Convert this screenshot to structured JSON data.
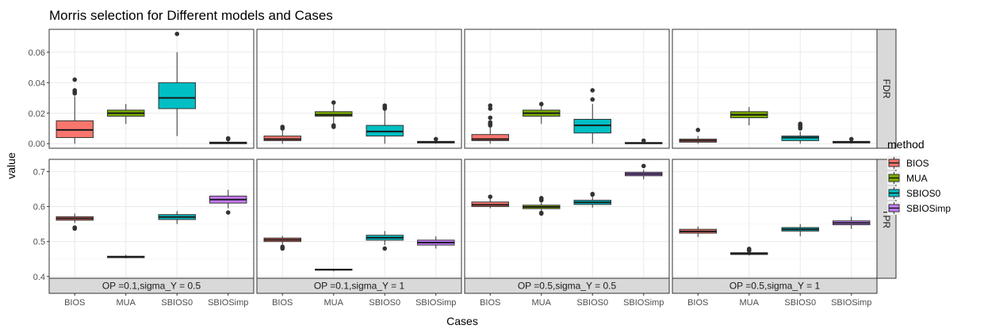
{
  "chart_data": {
    "type": "box",
    "title": "Morris selection for Different models and Cases",
    "xlabel": "Cases",
    "ylabel": "value",
    "legend": {
      "title": "method",
      "position": "right",
      "entries": [
        {
          "name": "BIOS",
          "color": "#F8766D"
        },
        {
          "name": "MUA",
          "color": "#7CAE00"
        },
        {
          "name": "SBIOS0",
          "color": "#00BFC4"
        },
        {
          "name": "SBIOSimp",
          "color": "#C77CFF"
        }
      ]
    },
    "categories": [
      "BIOS",
      "MUA",
      "SBIOS0",
      "SBIOSimp"
    ],
    "columns": [
      "OP =0.1,sigma_Y = 0.5",
      "OP =0.1,sigma_Y = 1",
      "OP =0.5,sigma_Y = 0.5",
      "OP =0.5,sigma_Y = 1"
    ],
    "rows": [
      {
        "label": "FDR",
        "ylim": [
          -0.003,
          0.075
        ],
        "ticks": [
          0.0,
          0.02,
          0.04,
          0.06
        ],
        "tick_labels": [
          "0.00",
          "0.02",
          "0.04",
          "0.06"
        ]
      },
      {
        "label": "TPR",
        "ylim": [
          0.395,
          0.735
        ],
        "ticks": [
          0.4,
          0.5,
          0.6,
          0.7
        ],
        "tick_labels": [
          "0.4",
          "0.5",
          "0.6",
          "0.7"
        ]
      }
    ],
    "grid": true,
    "panels": [
      {
        "row": 0,
        "col": 0,
        "boxes": [
          {
            "method": "BIOS",
            "q1": 0.004,
            "median": 0.009,
            "q3": 0.015,
            "lo": 0.0,
            "hi": 0.031,
            "outliers": [
              0.033,
              0.034,
              0.035,
              0.042
            ]
          },
          {
            "method": "MUA",
            "q1": 0.018,
            "median": 0.02,
            "q3": 0.022,
            "lo": 0.013,
            "hi": 0.026,
            "outliers": []
          },
          {
            "method": "SBIOS0",
            "q1": 0.023,
            "median": 0.03,
            "q3": 0.04,
            "lo": 0.005,
            "hi": 0.06,
            "outliers": [
              0.072
            ]
          },
          {
            "method": "SBIOSimp",
            "q1": 0.0,
            "median": 0.0005,
            "q3": 0.001,
            "lo": 0.0,
            "hi": 0.002,
            "outliers": [
              0.003,
              0.0035
            ]
          }
        ]
      },
      {
        "row": 0,
        "col": 1,
        "boxes": [
          {
            "method": "BIOS",
            "q1": 0.002,
            "median": 0.003,
            "q3": 0.005,
            "lo": 0.0,
            "hi": 0.009,
            "outliers": [
              0.01,
              0.011
            ]
          },
          {
            "method": "MUA",
            "q1": 0.018,
            "median": 0.019,
            "q3": 0.021,
            "lo": 0.013,
            "hi": 0.026,
            "outliers": [
              0.011,
              0.012,
              0.027
            ]
          },
          {
            "method": "SBIOS0",
            "q1": 0.005,
            "median": 0.008,
            "q3": 0.012,
            "lo": 0.0,
            "hi": 0.022,
            "outliers": [
              0.023,
              0.024,
              0.025
            ]
          },
          {
            "method": "SBIOSimp",
            "q1": 0.0005,
            "median": 0.001,
            "q3": 0.0015,
            "lo": 0.0,
            "hi": 0.0025,
            "outliers": [
              0.003
            ]
          }
        ]
      },
      {
        "row": 0,
        "col": 2,
        "boxes": [
          {
            "method": "BIOS",
            "q1": 0.002,
            "median": 0.003,
            "q3": 0.006,
            "lo": 0.0,
            "hi": 0.011,
            "outliers": [
              0.012,
              0.013,
              0.014,
              0.017,
              0.023,
              0.025
            ]
          },
          {
            "method": "MUA",
            "q1": 0.018,
            "median": 0.02,
            "q3": 0.022,
            "lo": 0.013,
            "hi": 0.026,
            "outliers": [
              0.026
            ]
          },
          {
            "method": "SBIOS0",
            "q1": 0.007,
            "median": 0.012,
            "q3": 0.016,
            "lo": 0.0,
            "hi": 0.026,
            "outliers": [
              0.029,
              0.035
            ]
          },
          {
            "method": "SBIOSimp",
            "q1": 0.0,
            "median": 0.0003,
            "q3": 0.0008,
            "lo": 0.0,
            "hi": 0.0015,
            "outliers": [
              0.002
            ]
          }
        ]
      },
      {
        "row": 0,
        "col": 3,
        "boxes": [
          {
            "method": "BIOS",
            "q1": 0.001,
            "median": 0.002,
            "q3": 0.003,
            "lo": 0.0,
            "hi": 0.005,
            "outliers": [
              0.009
            ]
          },
          {
            "method": "MUA",
            "q1": 0.017,
            "median": 0.019,
            "q3": 0.021,
            "lo": 0.012,
            "hi": 0.024,
            "outliers": []
          },
          {
            "method": "SBIOS0",
            "q1": 0.002,
            "median": 0.004,
            "q3": 0.005,
            "lo": 0.0,
            "hi": 0.008,
            "outliers": [
              0.01,
              0.011,
              0.012,
              0.013
            ]
          },
          {
            "method": "SBIOSimp",
            "q1": 0.0005,
            "median": 0.001,
            "q3": 0.0015,
            "lo": 0.0,
            "hi": 0.002,
            "outliers": [
              0.003
            ]
          }
        ]
      },
      {
        "row": 1,
        "col": 0,
        "boxes": [
          {
            "method": "BIOS",
            "q1": 0.561,
            "median": 0.566,
            "q3": 0.571,
            "lo": 0.553,
            "hi": 0.58,
            "outliers": [
              0.537,
              0.54
            ]
          },
          {
            "method": "MUA",
            "q1": 0.454,
            "median": 0.456,
            "q3": 0.458,
            "lo": 0.452,
            "hi": 0.462,
            "outliers": []
          },
          {
            "method": "SBIOS0",
            "q1": 0.563,
            "median": 0.57,
            "q3": 0.577,
            "lo": 0.55,
            "hi": 0.587,
            "outliers": []
          },
          {
            "method": "SBIOSimp",
            "q1": 0.61,
            "median": 0.62,
            "q3": 0.63,
            "lo": 0.595,
            "hi": 0.648,
            "outliers": [
              0.583
            ]
          }
        ]
      },
      {
        "row": 1,
        "col": 1,
        "boxes": [
          {
            "method": "BIOS",
            "q1": 0.5,
            "median": 0.505,
            "q3": 0.51,
            "lo": 0.49,
            "hi": 0.516,
            "outliers": [
              0.48,
              0.482,
              0.485
            ]
          },
          {
            "method": "MUA",
            "q1": 0.418,
            "median": 0.42,
            "q3": 0.421,
            "lo": 0.415,
            "hi": 0.422,
            "outliers": []
          },
          {
            "method": "SBIOS0",
            "q1": 0.504,
            "median": 0.511,
            "q3": 0.518,
            "lo": 0.49,
            "hi": 0.53,
            "outliers": [
              0.48
            ]
          },
          {
            "method": "SBIOSimp",
            "q1": 0.49,
            "median": 0.497,
            "q3": 0.504,
            "lo": 0.48,
            "hi": 0.515,
            "outliers": []
          }
        ]
      },
      {
        "row": 1,
        "col": 2,
        "boxes": [
          {
            "method": "BIOS",
            "q1": 0.6,
            "median": 0.605,
            "q3": 0.613,
            "lo": 0.595,
            "hi": 0.625,
            "outliers": [
              0.628
            ]
          },
          {
            "method": "MUA",
            "q1": 0.594,
            "median": 0.599,
            "q3": 0.604,
            "lo": 0.586,
            "hi": 0.612,
            "outliers": [
              0.58,
              0.582,
              0.618,
              0.622,
              0.624
            ]
          },
          {
            "method": "SBIOS0",
            "q1": 0.606,
            "median": 0.612,
            "q3": 0.618,
            "lo": 0.597,
            "hi": 0.627,
            "outliers": [
              0.634,
              0.636
            ]
          },
          {
            "method": "SBIOSimp",
            "q1": 0.688,
            "median": 0.693,
            "q3": 0.698,
            "lo": 0.678,
            "hi": 0.705,
            "outliers": [
              0.716
            ]
          }
        ]
      },
      {
        "row": 1,
        "col": 3,
        "boxes": [
          {
            "method": "BIOS",
            "q1": 0.524,
            "median": 0.529,
            "q3": 0.535,
            "lo": 0.513,
            "hi": 0.543,
            "outliers": []
          },
          {
            "method": "MUA",
            "q1": 0.463,
            "median": 0.466,
            "q3": 0.468,
            "lo": 0.46,
            "hi": 0.472,
            "outliers": [
              0.474,
              0.476,
              0.479
            ]
          },
          {
            "method": "SBIOS0",
            "q1": 0.53,
            "median": 0.535,
            "q3": 0.54,
            "lo": 0.515,
            "hi": 0.55,
            "outliers": []
          },
          {
            "method": "SBIOSimp",
            "q1": 0.548,
            "median": 0.553,
            "q3": 0.559,
            "lo": 0.536,
            "hi": 0.571,
            "outliers": []
          }
        ]
      }
    ]
  }
}
